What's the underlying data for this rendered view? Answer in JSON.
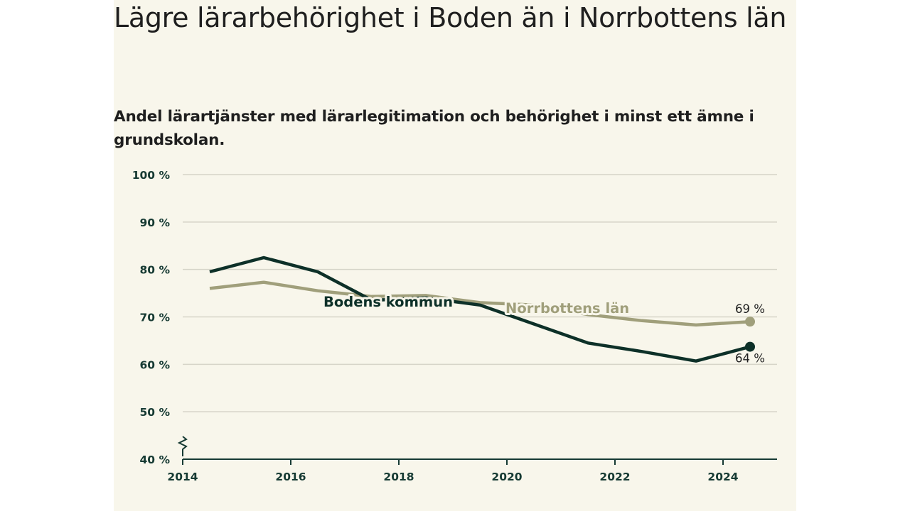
{
  "title": "Lägre lärarbehörighet i Boden än i Norrbottens län",
  "subtitle": "Andel lärartjänster med lärarlegitimation och behörighet i minst ett ämne i grundskolan.",
  "colors": {
    "panel_background": "#f8f6eb",
    "bodens_kommun": "#0d3028",
    "norrbottens_lan": "#a09f7b",
    "grid": "#d6d4c8",
    "axis": "#163a33"
  },
  "chart_data": {
    "type": "line",
    "title": "Lägre lärarbehörighet i Boden än i Norrbottens län",
    "subtitle": "Andel lärartjänster med lärarlegitimation och behörighet i minst ett ämne i grundskolan.",
    "xlabel": "",
    "ylabel": "",
    "xlim": [
      2014,
      2025
    ],
    "ylim": [
      40,
      100
    ],
    "x_ticks": [
      "2014",
      "2016",
      "2018",
      "2020",
      "2022",
      "2024"
    ],
    "y_ticks": [
      "40 %",
      "50 %",
      "60 %",
      "70 %",
      "80 %",
      "90 %",
      "100 %"
    ],
    "grid": true,
    "axis_break": true,
    "series": [
      {
        "name": "Norrbottens län",
        "color": "#a09f7b",
        "x": [
          2014.5,
          2015.5,
          2016.5,
          2017.5,
          2018.5,
          2019.5,
          2020.5,
          2021.5,
          2022.5,
          2023.5,
          2024.5
        ],
        "y": [
          76,
          77.3,
          75.5,
          74.3,
          74.5,
          73,
          72.5,
          70.5,
          69.2,
          68.3,
          69
        ],
        "end_label": "69 %"
      },
      {
        "name": "Bodens kommun",
        "color": "#0d3028",
        "x": [
          2014.5,
          2015.5,
          2016.5,
          2017.5,
          2018.5,
          2019.5,
          2020.5,
          2021.5,
          2022.5,
          2023.5,
          2024.5
        ],
        "y": [
          79.5,
          82.5,
          79.5,
          73.5,
          74.0,
          72.5,
          68.5,
          64.5,
          62.7,
          60.7,
          63.7
        ],
        "end_label": "64 %"
      }
    ]
  }
}
